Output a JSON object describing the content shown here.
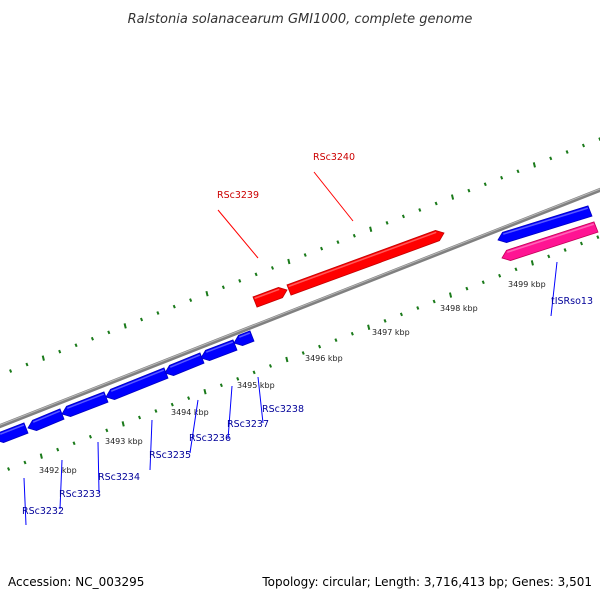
{
  "title": "Ralstonia solanacearum GMI1000, complete genome",
  "footer": {
    "accession": "Accession: NC_003295",
    "summary": "Topology: circular; Length: 3,716,413 bp; Genes: 3,501"
  },
  "colors": {
    "forward_gene": "#ff0000",
    "reverse_gene": "#0000ff",
    "rna_gene": "#ff1493",
    "backbone": "#808080",
    "tick": "#1a7a1a",
    "forward_label": "#cc0000",
    "reverse_label": "#000099"
  },
  "axis": {
    "unit": "kbp",
    "major_ticks": [
      3492,
      3493,
      3494,
      3495,
      3496,
      3497,
      3498,
      3499
    ]
  },
  "ticks": [
    {
      "label": "3492 kbp"
    },
    {
      "label": "3493 kbp"
    },
    {
      "label": "3494 kbp"
    },
    {
      "label": "3495 kbp"
    },
    {
      "label": "3496 kbp"
    },
    {
      "label": "3497 kbp"
    },
    {
      "label": "3498 kbp"
    },
    {
      "label": "3499 kbp"
    }
  ],
  "genes": [
    {
      "name": "RSc3232",
      "strand": "reverse",
      "type": "CDS"
    },
    {
      "name": "RSc3233",
      "strand": "reverse",
      "type": "CDS"
    },
    {
      "name": "RSc3234",
      "strand": "reverse",
      "type": "CDS"
    },
    {
      "name": "RSc3235",
      "strand": "reverse",
      "type": "CDS"
    },
    {
      "name": "RSc3236",
      "strand": "reverse",
      "type": "CDS"
    },
    {
      "name": "RSc3237",
      "strand": "reverse",
      "type": "CDS"
    },
    {
      "name": "RSc3238",
      "strand": "reverse",
      "type": "CDS"
    },
    {
      "name": "RSc3239",
      "strand": "forward",
      "type": "CDS"
    },
    {
      "name": "RSc3240",
      "strand": "forward",
      "type": "CDS"
    },
    {
      "name": "",
      "strand": "reverse",
      "type": "CDS"
    },
    {
      "name": "tISRso13",
      "strand": "reverse",
      "type": "RNA"
    }
  ]
}
